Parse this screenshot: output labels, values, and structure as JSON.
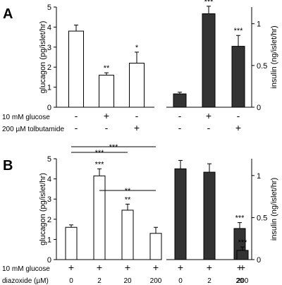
{
  "chart_data": [
    {
      "panel": "A",
      "type": "bar",
      "left": {
        "ylabel": "glucagon (pg/islet/hr)",
        "ylim": [
          0,
          5
        ],
        "ticks": [
          "0",
          "1",
          "2",
          "3",
          "4",
          "5"
        ],
        "bar_color": "#ffffff",
        "values": [
          3.8,
          1.6,
          2.2
        ],
        "errors": [
          0.3,
          0.12,
          0.55
        ],
        "stars": [
          "",
          "**",
          "*"
        ]
      },
      "right": {
        "ylabel": "insulin (ng/islet/hr)",
        "ylim": [
          0,
          1.2
        ],
        "ticks": [
          "0",
          "0.5",
          "1"
        ],
        "bar_color": "#333333",
        "values": [
          0.16,
          1.12,
          0.73
        ],
        "errors": [
          0.02,
          0.09,
          0.13
        ],
        "stars": [
          "",
          "***",
          "***"
        ]
      },
      "conditions": [
        {
          "label": "10 mM glucose",
          "signs": [
            "-",
            "+",
            "-"
          ]
        },
        {
          "label": "200 µM tolbutamide",
          "signs": [
            "-",
            "-",
            "+"
          ]
        }
      ]
    },
    {
      "panel": "B",
      "type": "bar",
      "left": {
        "ylabel": "glucagon (pg/islet/hr)",
        "ylim": [
          0,
          5
        ],
        "ticks": [
          "0",
          "1",
          "2",
          "3",
          "4",
          "5"
        ],
        "bar_color": "#ffffff",
        "values": [
          1.6,
          4.15,
          2.45,
          1.3
        ],
        "errors": [
          0.12,
          0.35,
          0.3,
          0.3
        ],
        "stars": [
          "",
          "***",
          "**",
          ""
        ]
      },
      "right": {
        "ylabel": "insulin (ng/islet/hr)",
        "ylim": [
          0,
          1.2
        ],
        "ticks": [
          "0",
          "0.5",
          "1"
        ],
        "bar_color": "#333333",
        "values": [
          1.08,
          1.04,
          0.37,
          0.11
        ],
        "errors": [
          0.1,
          0.1,
          0.07,
          0.04
        ],
        "stars": [
          "",
          "",
          "***",
          "***"
        ]
      },
      "comparisons": [
        {
          "from": 0,
          "to": 2,
          "label": "***"
        },
        {
          "from": 0,
          "to": 3,
          "label": "***"
        },
        {
          "from": 1,
          "to": 3,
          "label": "**"
        }
      ],
      "conditions": [
        {
          "label": "10 mM glucose",
          "signs": [
            "+",
            "+",
            "+",
            "+"
          ]
        },
        {
          "label": "diazoxide (µM)",
          "signs": [
            "0",
            "2",
            "20",
            "200"
          ]
        }
      ]
    }
  ]
}
